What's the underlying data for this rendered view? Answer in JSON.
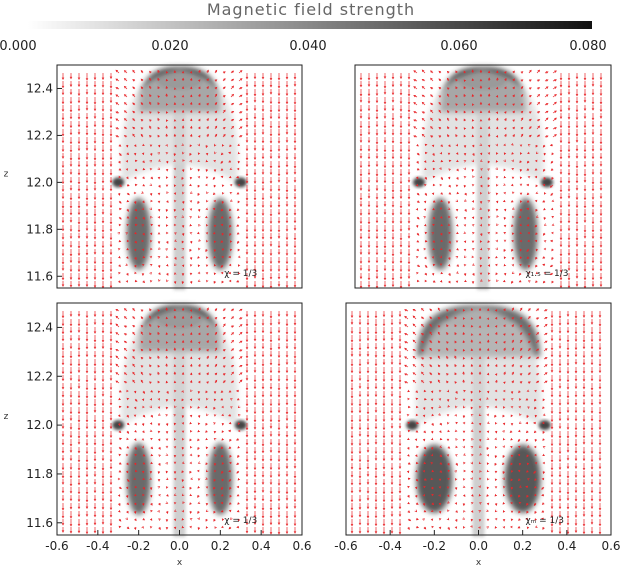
{
  "chart_data": {
    "type": "heatmap",
    "colorbar": {
      "title": "Magnetic field strength",
      "ticks": [
        "0.000",
        "0.020",
        "0.040",
        "0.060",
        "0.080"
      ],
      "range": [
        0,
        0.08
      ],
      "colormap": "white-to-black"
    },
    "vector_overlay": {
      "color": "#e8262a",
      "description_visible": false
    },
    "panels": [
      {
        "position": "top-left",
        "x_ticks": [],
        "y_ticks": [
          "11.6",
          "11.8",
          "12.0",
          "12.2",
          "12.4"
        ],
        "y_values": [
          11.6,
          11.8,
          12.0,
          12.2,
          12.4
        ],
        "xlabel": "",
        "ylabel": "z",
        "annotation": "χ = 1/3",
        "x_range": [
          -0.6,
          0.6
        ],
        "y_range": [
          11.55,
          12.5
        ]
      },
      {
        "position": "top-right",
        "x_ticks": [],
        "y_ticks": [],
        "xlabel": "",
        "ylabel": "",
        "annotation": "χ₁.₅ = 1/3",
        "x_range": [
          -0.6,
          0.6
        ],
        "y_range": [
          11.55,
          12.5
        ]
      },
      {
        "position": "bottom-left",
        "x_ticks": [
          "-0.6",
          "-0.4",
          "-0.2",
          "0.0",
          "0.2",
          "0.4",
          "0.6"
        ],
        "x_values": [
          -0.6,
          -0.4,
          -0.2,
          0.0,
          0.2,
          0.4,
          0.6
        ],
        "y_ticks": [
          "11.6",
          "11.8",
          "12.0",
          "12.2",
          "12.4"
        ],
        "y_values": [
          11.6,
          11.8,
          12.0,
          12.2,
          12.4
        ],
        "xlabel": "x",
        "ylabel": "z",
        "annotation": "χ = 1/3",
        "x_range": [
          -0.6,
          0.6
        ],
        "y_range": [
          11.55,
          12.5
        ]
      },
      {
        "position": "bottom-right",
        "x_ticks": [
          "-0.6",
          "-0.4",
          "-0.2",
          "0.0",
          "0.2",
          "0.4",
          "0.6"
        ],
        "x_values": [
          -0.6,
          -0.4,
          -0.2,
          0.0,
          0.2,
          0.4,
          0.6
        ],
        "y_ticks": [],
        "xlabel": "x",
        "ylabel": "",
        "annotation": "χₘ = 1/3",
        "x_range": [
          -0.6,
          0.6
        ],
        "y_range": [
          11.55,
          12.5
        ]
      }
    ]
  }
}
